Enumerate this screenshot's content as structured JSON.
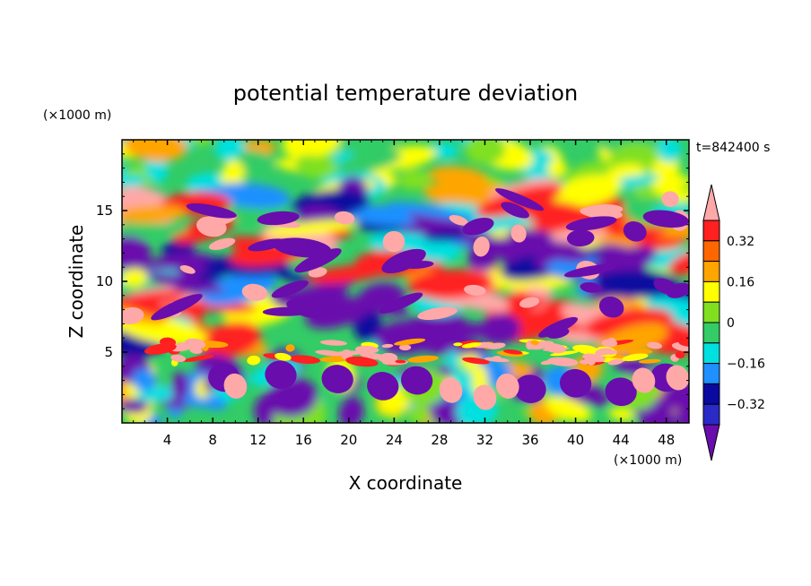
{
  "chart_data": {
    "type": "heatmap",
    "title": "potential temperature deviation",
    "xlabel": "X coordinate",
    "ylabel": "Z coordinate",
    "x_unit": "(×1000 m)",
    "y_unit": "(×1000 m)",
    "time_label": "t=842400 s",
    "xlim": [
      0,
      50
    ],
    "ylim": [
      0,
      20
    ],
    "x_ticks": [
      4,
      8,
      12,
      16,
      20,
      24,
      28,
      32,
      36,
      40,
      44,
      48
    ],
    "y_ticks": [
      5,
      10,
      15
    ],
    "colorbar": {
      "levels": [
        -0.4,
        -0.32,
        -0.24,
        -0.16,
        -0.08,
        0,
        0.08,
        0.16,
        0.24,
        0.32,
        0.4
      ],
      "labeled_levels": [
        0.32,
        0.16,
        0,
        -0.16,
        -0.32
      ],
      "labels": [
        "0.32",
        "0.16",
        "0",
        "−0.16",
        "−0.32"
      ],
      "colors": [
        "#6a0dad",
        "#2a2ac8",
        "#0a0aa0",
        "#1e90ff",
        "#00e0e0",
        "#33cc66",
        "#80e020",
        "#ffff00",
        "#ffa500",
        "#ff6600",
        "#ff2020",
        "#ffa8a8"
      ]
    },
    "regions": [
      {
        "band": "upper troposphere (Z 15–20)",
        "pattern": "mostly green/cyan with scattered yellow and orange"
      },
      {
        "band": "mid levels (Z 5–16)",
        "pattern": "alternating tilted layers of purple/blue and red/pink"
      },
      {
        "band": "near Z ≈ 4–5",
        "pattern": "thin pink/red layer with fine-scale structure"
      },
      {
        "band": "lower levels (Z 0–4)",
        "pattern": "purple blobs with pink patches near x ≈ 28–34 and x ≈ 46–50"
      }
    ]
  }
}
